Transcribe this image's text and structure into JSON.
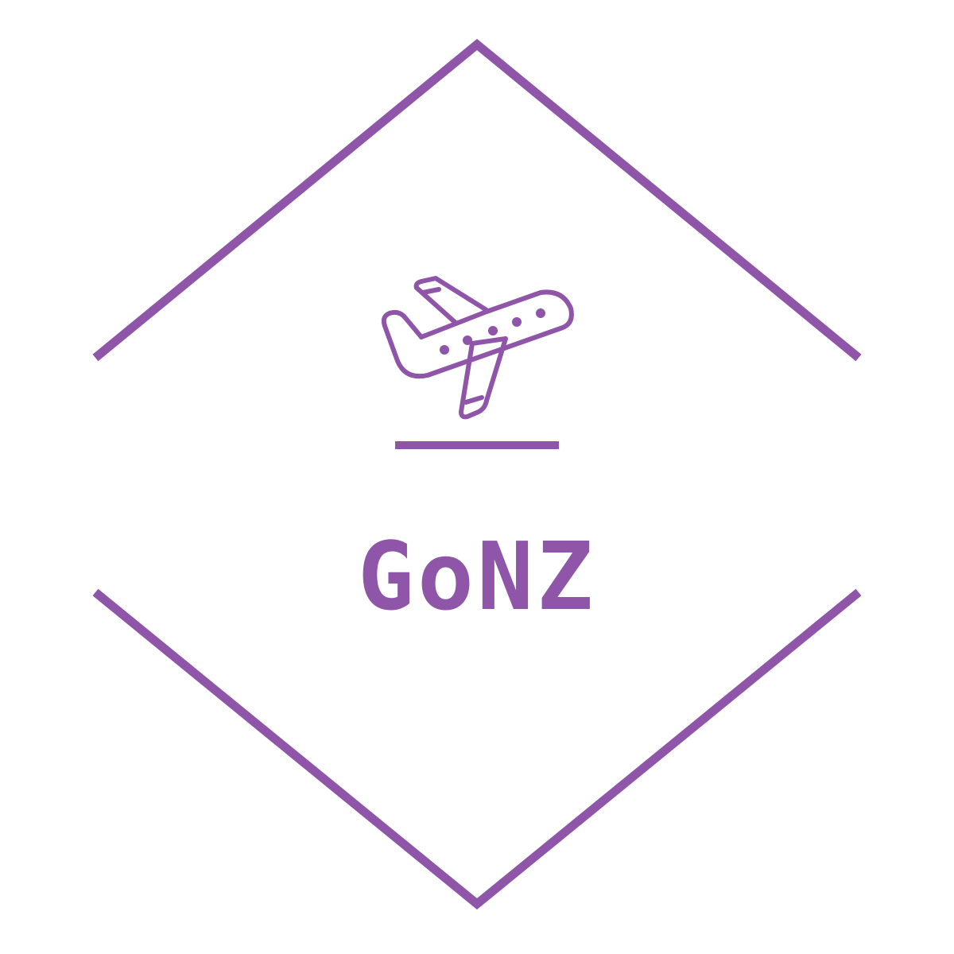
{
  "logo": {
    "brand_name": "GoNZ",
    "icon": "airplane-takeoff-icon",
    "accent_color": "#8e55a8",
    "background_color": "#ffffff"
  }
}
